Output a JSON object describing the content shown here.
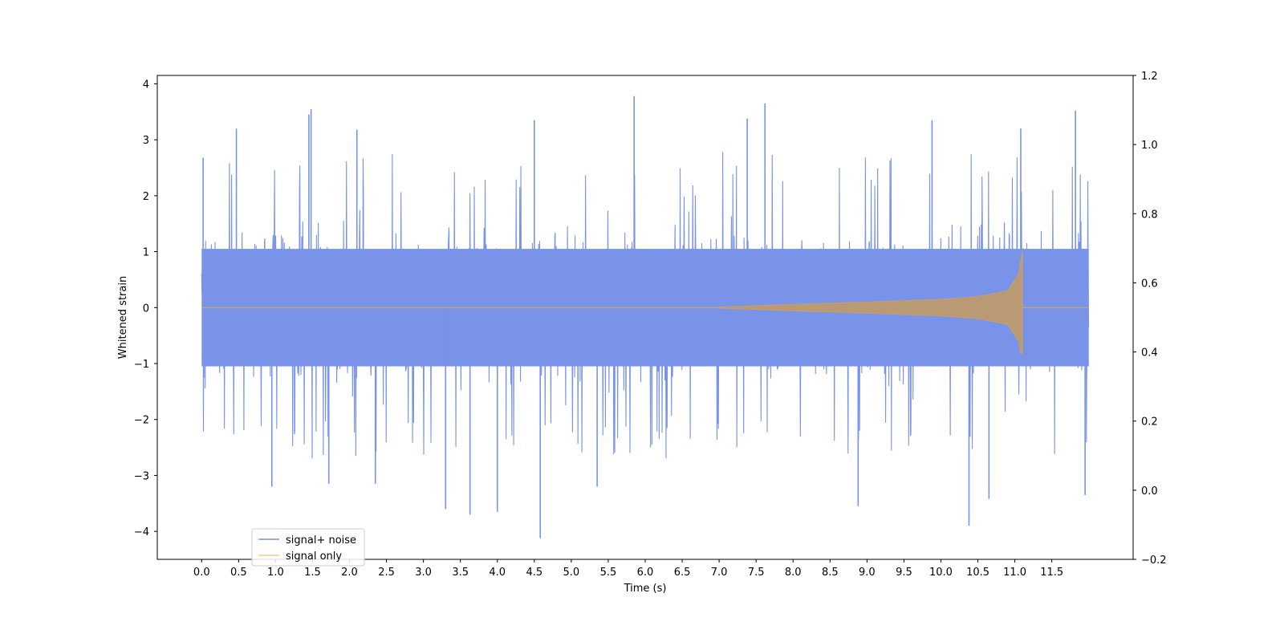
{
  "chart_data": {
    "type": "line",
    "title": "",
    "xlabel": "Time (s)",
    "ylabel": "Whitened strain",
    "y2label": "",
    "xlim": [
      -0.6,
      12.6
    ],
    "ylim": [
      -4.5,
      4.15
    ],
    "y2lim": [
      -0.2,
      1.2
    ],
    "xticks": [
      0.0,
      0.5,
      1.0,
      1.5,
      2.0,
      2.5,
      3.0,
      3.5,
      4.0,
      4.5,
      5.0,
      5.5,
      6.0,
      6.5,
      7.0,
      7.5,
      8.0,
      8.5,
      9.0,
      9.5,
      10.0,
      10.5,
      11.0,
      11.5
    ],
    "xtick_labels": [
      "0.0",
      "0.5",
      "1.0",
      "1.5",
      "2.0",
      "2.5",
      "3.0",
      "3.5",
      "4.0",
      "4.5",
      "5.0",
      "5.5",
      "6.0",
      "6.5",
      "7.0",
      "7.5",
      "8.0",
      "8.5",
      "9.0",
      "9.5",
      "10.0",
      "10.5",
      "11.0",
      "11.5"
    ],
    "yticks": [
      -4,
      -3,
      -2,
      -1,
      0,
      1,
      2,
      3,
      4
    ],
    "ytick_labels": [
      "−4",
      "−3",
      "−2",
      "−1",
      "0",
      "1",
      "2",
      "3",
      "4"
    ],
    "y2ticks": [
      -0.2,
      0.0,
      0.2,
      0.4,
      0.6,
      0.8,
      1.0,
      1.2
    ],
    "y2tick_labels": [
      "−0.2",
      "0.0",
      "0.2",
      "0.4",
      "0.6",
      "0.8",
      "1.0",
      "1.2"
    ],
    "grid": false,
    "legend_position": "bottom-left",
    "series": [
      {
        "name": "signal+ noise",
        "color": "#7893e8",
        "kind": "noise",
        "x_range": [
          0.0,
          12.0
        ],
        "envelope": {
          "typical_max": 2.3,
          "typical_min": -2.1,
          "peak_max": 3.78,
          "peak_min": -4.12
        },
        "peaks": [
          {
            "x": 0.02,
            "y": 2.68
          },
          {
            "x": 0.03,
            "y": -1.25
          },
          {
            "x": 0.47,
            "y": 3.2
          },
          {
            "x": 0.95,
            "y": -3.2
          },
          {
            "x": 1.48,
            "y": 3.55
          },
          {
            "x": 1.45,
            "y": 3.45
          },
          {
            "x": 1.72,
            "y": -3.15
          },
          {
            "x": 2.1,
            "y": 3.18
          },
          {
            "x": 2.35,
            "y": -3.15
          },
          {
            "x": 3.3,
            "y": -3.6
          },
          {
            "x": 3.63,
            "y": -3.7
          },
          {
            "x": 4.0,
            "y": -3.65
          },
          {
            "x": 4.5,
            "y": 3.35
          },
          {
            "x": 4.58,
            "y": -4.12
          },
          {
            "x": 5.85,
            "y": 3.78
          },
          {
            "x": 5.35,
            "y": -3.2
          },
          {
            "x": 7.38,
            "y": 3.38
          },
          {
            "x": 7.62,
            "y": 3.65
          },
          {
            "x": 8.88,
            "y": -3.55
          },
          {
            "x": 9.88,
            "y": 3.35
          },
          {
            "x": 10.38,
            "y": -3.9
          },
          {
            "x": 10.65,
            "y": -3.42
          },
          {
            "x": 11.08,
            "y": 3.2
          },
          {
            "x": 11.82,
            "y": 3.52
          },
          {
            "x": 11.95,
            "y": -3.35
          }
        ]
      },
      {
        "name": "signal only",
        "color": "#ffc87a",
        "kind": "chirp",
        "x_range": [
          0.0,
          12.0
        ],
        "chirp_start": 7.0,
        "merger_time": 11.1,
        "amplitude_points": [
          {
            "t": 7.0,
            "a": 0.01
          },
          {
            "t": 8.0,
            "a": 0.06
          },
          {
            "t": 9.0,
            "a": 0.1
          },
          {
            "t": 10.0,
            "a": 0.15
          },
          {
            "t": 10.5,
            "a": 0.2
          },
          {
            "t": 10.9,
            "a": 0.3
          },
          {
            "t": 11.05,
            "a": 0.6
          },
          {
            "t": 11.1,
            "a": 1.0
          }
        ],
        "merger_min": -0.82
      }
    ]
  }
}
